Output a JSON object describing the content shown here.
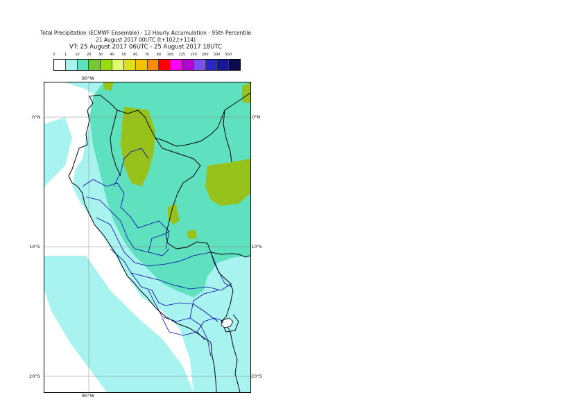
{
  "title": {
    "line1": "Total Precipitation (ECMWF Ensemble) - 12 Hourly Accumulation - 95th Percentile",
    "line2": "21 August 2017 00UTC (t+102,t+114)",
    "line3": "VT: 25 August 2017 06UTC - 25 August 2017 18UTC"
  },
  "legend": {
    "levels": [
      "0",
      "1",
      "10",
      "20",
      "30",
      "40",
      "50",
      "60",
      "70",
      "80",
      "100",
      "125",
      "150",
      "200",
      "300",
      "500"
    ],
    "colors": [
      "#ffffff",
      "#a8f2ef",
      "#5fe0be",
      "#73c833",
      "#97dc10",
      "#e4fa6e",
      "#e0e018",
      "#f5c200",
      "#ff8c00",
      "#ff0000",
      "#ff00ff",
      "#b400d0",
      "#7a4ef0",
      "#2828c8",
      "#181896",
      "#0a0a50"
    ]
  },
  "map": {
    "lon_top": "80°W",
    "lon_bottom": "80°W",
    "lat_left_0": "0°N",
    "lat_right_0": "0°N",
    "lat_left_10": "10°S",
    "lat_right_10": "10°S",
    "lat_left_20": "20°S",
    "lat_right_20": "20°S",
    "colors": {
      "light": "#a8f2ef",
      "mid": "#5fe0be",
      "green": "#97c21c",
      "land_border": "#000000",
      "admin_border": "#0000aa",
      "grid": "#888888"
    }
  }
}
